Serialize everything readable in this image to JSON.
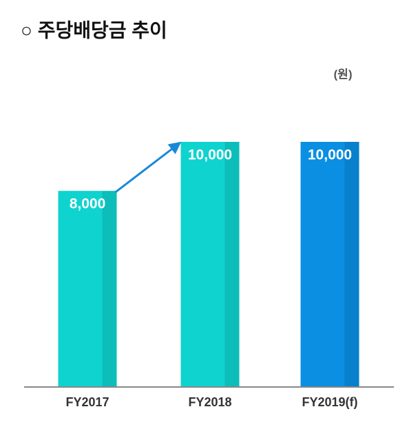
{
  "chart_data": {
    "type": "bar",
    "title": "○ 주당배당금 추이",
    "unit_label": "(원)",
    "categories": [
      "FY2017",
      "FY2018",
      "FY2019(f)"
    ],
    "values": [
      8000,
      10000,
      10000
    ],
    "value_labels": [
      "8,000",
      "10,000",
      "10,000"
    ],
    "colors": [
      "#0fd3cf",
      "#0fd3cf",
      "#0a8fe2"
    ]
  }
}
